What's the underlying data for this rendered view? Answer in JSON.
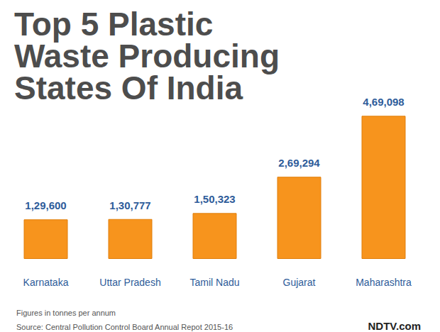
{
  "chart_data": {
    "type": "bar",
    "title": "Top 5 Plastic Waste Producing States Of India",
    "categories": [
      "Karnataka",
      "Uttar Pradesh",
      "Tamil Nadu",
      "Gujarat",
      "Maharashtra"
    ],
    "values": [
      129600,
      130777,
      150323,
      269294,
      469098
    ],
    "value_labels": [
      "1,29,600",
      "1,30,777",
      "1,50,323",
      "2,69,294",
      "4,69,098"
    ],
    "color": "#f7941d",
    "data_labels": true,
    "tick_labels": "x",
    "grid": false,
    "annotations": [
      "Figures in tonnes per annum",
      "Source: Central Pollution Control Board Annual Repot 2015-16",
      "NDTV.com"
    ]
  }
}
